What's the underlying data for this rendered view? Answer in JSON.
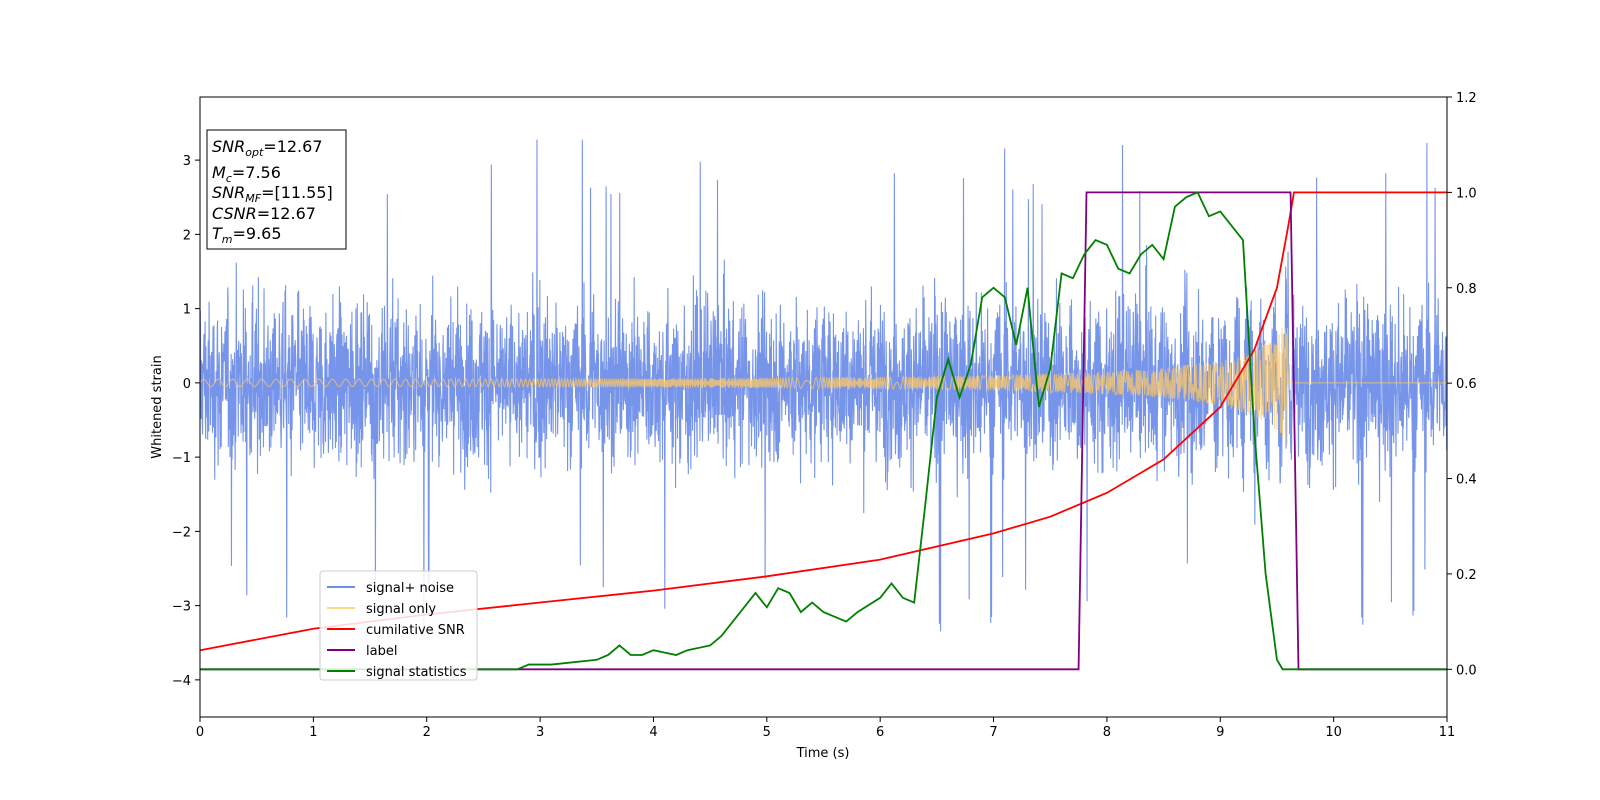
{
  "chart_data": {
    "type": "line",
    "xlabel": "Time (s)",
    "ylabel": "Whitened strain",
    "xlim": [
      0,
      11
    ],
    "ylim": [
      -4.5,
      3.85
    ],
    "ylim_right": [
      -0.1,
      1.2
    ],
    "x_ticks": [
      "0",
      "1",
      "2",
      "3",
      "4",
      "5",
      "6",
      "7",
      "8",
      "9",
      "10",
      "11"
    ],
    "y_ticks": [
      "−4",
      "−3",
      "−2",
      "−1",
      "0",
      "1",
      "2",
      "3"
    ],
    "y_ticks_right": [
      "0.0",
      "0.2",
      "0.4",
      "0.6",
      "0.8",
      "1.0",
      "1.2"
    ],
    "info_box": {
      "snr_opt": {
        "main": "SNR",
        "sub": "opt",
        "value": "=12.67"
      },
      "mc": {
        "main": "M",
        "sub": "c",
        "value": "=7.56"
      },
      "snr_mf": {
        "main": "SNR",
        "sub": "MF",
        "value": "=[11.55]"
      },
      "csnr": {
        "main": "CSNR",
        "value": "=12.67"
      },
      "tm": {
        "main": "T",
        "sub": "m",
        "value": "=9.65"
      }
    },
    "legend_position": "lower-left",
    "series": [
      {
        "name": "signal+ noise",
        "color": "#6f8ee8",
        "axis": "left",
        "noise_std": 0.75,
        "spike_range": [
          -4.15,
          3.5
        ],
        "note_only": false
      },
      {
        "name": "signal only",
        "color": "#ffc864",
        "axis": "left",
        "envelope": {
          "x": [
            0,
            2,
            4,
            5,
            6,
            7,
            8,
            8.5,
            9,
            9.3,
            9.5,
            9.6,
            9.65
          ],
          "y": [
            0.05,
            0.05,
            0.06,
            0.07,
            0.08,
            0.1,
            0.15,
            0.2,
            0.3,
            0.45,
            0.65,
            0.85,
            0
          ]
        },
        "chirp_cycles": 75
      },
      {
        "name": "cumilative SNR",
        "color": "#ff0000",
        "axis": "right",
        "x": [
          0,
          1,
          2,
          3,
          4,
          5,
          6,
          7,
          7.5,
          8,
          8.5,
          9,
          9.3,
          9.5,
          9.6,
          9.65,
          11
        ],
        "y": [
          0.04,
          0.085,
          0.115,
          0.14,
          0.165,
          0.195,
          0.23,
          0.285,
          0.32,
          0.37,
          0.44,
          0.55,
          0.67,
          0.8,
          0.93,
          1.0,
          1.0
        ]
      },
      {
        "name": "label",
        "color": "#800080",
        "axis": "right",
        "x": [
          0,
          7.75,
          7.82,
          9.62,
          9.69,
          11
        ],
        "y": [
          0,
          0,
          1,
          1,
          0,
          0
        ]
      },
      {
        "name": "signal statistics",
        "color": "#008000",
        "axis": "right",
        "x": [
          0,
          2.8,
          2.9,
          3.1,
          3.5,
          3.6,
          3.7,
          3.8,
          3.9,
          4.0,
          4.1,
          4.2,
          4.3,
          4.5,
          4.6,
          4.7,
          4.8,
          4.9,
          5.0,
          5.1,
          5.2,
          5.3,
          5.4,
          5.5,
          5.6,
          5.7,
          5.8,
          6.0,
          6.1,
          6.2,
          6.3,
          6.4,
          6.5,
          6.6,
          6.7,
          6.8,
          6.9,
          7.0,
          7.1,
          7.2,
          7.3,
          7.4,
          7.5,
          7.6,
          7.7,
          7.8,
          7.9,
          8.0,
          8.1,
          8.2,
          8.3,
          8.4,
          8.5,
          8.6,
          8.7,
          8.8,
          8.9,
          9.0,
          9.1,
          9.2,
          9.3,
          9.4,
          9.5,
          9.55,
          9.6,
          9.65,
          11
        ],
        "y": [
          0,
          0,
          0.01,
          0.01,
          0.02,
          0.03,
          0.05,
          0.03,
          0.03,
          0.04,
          0.035,
          0.03,
          0.04,
          0.05,
          0.07,
          0.1,
          0.13,
          0.16,
          0.13,
          0.17,
          0.16,
          0.12,
          0.14,
          0.12,
          0.11,
          0.1,
          0.12,
          0.15,
          0.18,
          0.15,
          0.14,
          0.35,
          0.57,
          0.65,
          0.57,
          0.64,
          0.78,
          0.8,
          0.78,
          0.68,
          0.8,
          0.55,
          0.63,
          0.83,
          0.82,
          0.87,
          0.9,
          0.89,
          0.84,
          0.83,
          0.87,
          0.89,
          0.86,
          0.97,
          0.99,
          1.0,
          0.95,
          0.96,
          0.93,
          0.9,
          0.5,
          0.2,
          0.02,
          0.0,
          0.0,
          0.0,
          0.0
        ]
      }
    ]
  }
}
